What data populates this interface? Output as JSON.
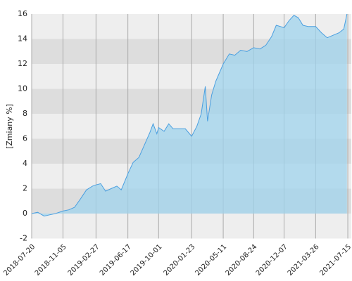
{
  "chart_data": {
    "type": "area",
    "y_label": "[Zmiany %]",
    "xlim": [
      "2018-07-20",
      "2021-07-27"
    ],
    "xticks": [
      "2018-07-20",
      "2018-11-05",
      "2019-02-27",
      "2019-06-17",
      "2019-10-01",
      "2020-01-23",
      "2020-05-11",
      "2020-08-24",
      "2020-12-07",
      "2021-03-26",
      "2021-07-15"
    ],
    "ylim": [
      -2,
      16
    ],
    "yticks": [
      -2,
      0,
      2,
      4,
      6,
      8,
      10,
      12,
      14,
      16
    ],
    "grid": true,
    "series": [
      {
        "color": "#4a9fe0",
        "x": [
          "2018-07-20",
          "2018-08-10",
          "2018-09-01",
          "2018-09-20",
          "2018-10-10",
          "2018-11-05",
          "2018-11-25",
          "2018-12-15",
          "2019-01-05",
          "2019-01-25",
          "2019-02-15",
          "2019-02-27",
          "2019-03-15",
          "2019-04-01",
          "2019-04-20",
          "2019-05-10",
          "2019-05-25",
          "2019-06-17",
          "2019-07-05",
          "2019-07-25",
          "2019-08-15",
          "2019-09-01",
          "2019-09-12",
          "2019-09-25",
          "2019-10-01",
          "2019-10-20",
          "2019-11-05",
          "2019-11-20",
          "2019-12-10",
          "2020-01-01",
          "2020-01-23",
          "2020-02-10",
          "2020-02-25",
          "2020-03-10",
          "2020-03-18",
          "2020-04-01",
          "2020-04-15",
          "2020-05-11",
          "2020-06-01",
          "2020-06-20",
          "2020-07-10",
          "2020-08-01",
          "2020-08-24",
          "2020-09-15",
          "2020-10-05",
          "2020-10-25",
          "2020-11-10",
          "2020-11-25",
          "2020-12-07",
          "2020-12-25",
          "2021-01-10",
          "2021-01-25",
          "2021-02-10",
          "2021-03-01",
          "2021-03-26",
          "2021-04-15",
          "2021-05-05",
          "2021-05-25",
          "2021-06-15",
          "2021-07-01",
          "2021-07-12"
        ],
        "values": [
          0,
          0.1,
          -0.2,
          -0.1,
          0.0,
          0.2,
          0.3,
          0.5,
          1.2,
          1.9,
          2.2,
          2.3,
          2.4,
          1.8,
          2.0,
          2.2,
          1.9,
          3.2,
          4.1,
          4.5,
          5.6,
          6.5,
          7.2,
          6.4,
          6.9,
          6.6,
          7.2,
          6.8,
          6.8,
          6.8,
          6.2,
          7.0,
          8.0,
          10.2,
          7.4,
          9.5,
          10.6,
          12.0,
          12.8,
          12.7,
          13.1,
          13.0,
          13.3,
          13.2,
          13.5,
          14.2,
          15.1,
          15.0,
          14.9,
          15.5,
          15.9,
          15.7,
          15.1,
          15.0,
          15.0,
          14.5,
          14.1,
          14.3,
          14.5,
          14.8,
          16.0
        ]
      }
    ]
  }
}
